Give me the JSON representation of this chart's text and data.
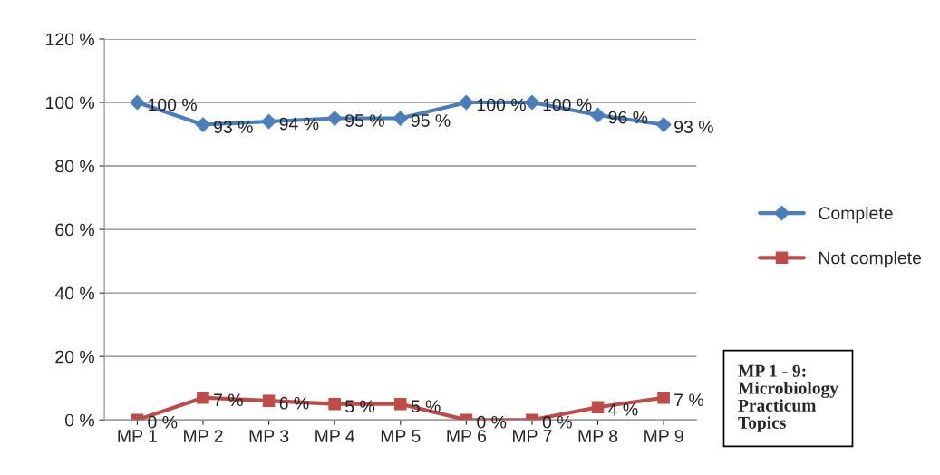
{
  "chart_data": {
    "type": "line",
    "categories": [
      "MP 1",
      "MP 2",
      "MP 3",
      "MP 4",
      "MP 5",
      "MP 6",
      "MP 7",
      "MP 8",
      "MP 9"
    ],
    "series": [
      {
        "name": "Complete",
        "color": "#4a7ebb",
        "marker": "diamond",
        "values": [
          100,
          93,
          94,
          95,
          95,
          100,
          100,
          96,
          93
        ],
        "value_labels": [
          "100 %",
          "93 %",
          "94 %",
          "95 %",
          "95 %",
          "100 %",
          "100 %",
          "96 %",
          "93 %"
        ]
      },
      {
        "name": "Not complete",
        "color": "#be4b48",
        "marker": "square",
        "values": [
          0,
          7,
          6,
          5,
          5,
          0,
          0,
          4,
          7
        ],
        "value_labels": [
          "0 %",
          "7 %",
          "6 %",
          "5 %",
          "5 %",
          "0 %",
          "0 %",
          "4 %",
          "7 %"
        ]
      }
    ],
    "ylim": [
      0,
      120
    ],
    "yticks": [
      {
        "value": 0,
        "label": "0 %"
      },
      {
        "value": 20,
        "label": "20 %"
      },
      {
        "value": 40,
        "label": "40 %"
      },
      {
        "value": 60,
        "label": "60 %"
      },
      {
        "value": 80,
        "label": "80 %"
      },
      {
        "value": 100,
        "label": "100 %"
      },
      {
        "value": 120,
        "label": "120 %"
      }
    ],
    "grid": "y",
    "legend": "right",
    "line_style": "solid",
    "annotations": [
      "MP 1 - 9:\nMicrobiology\nPracticum\nTopics"
    ]
  }
}
